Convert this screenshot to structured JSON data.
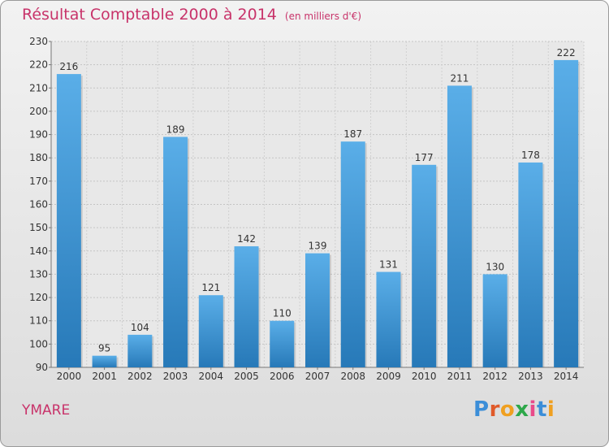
{
  "header": {
    "title": "Résultat Comptable 2000 à 2014",
    "unit": "(en milliers d'€)"
  },
  "commune": "YMARE",
  "logo": {
    "text": "Proxiti",
    "letter_colors": [
      "#3b8ed8",
      "#e05a2a",
      "#f0a020",
      "#2da84a",
      "#e94b8a",
      "#3b8ed8",
      "#f0a020"
    ]
  },
  "colors": {
    "bar_light": "#5aaee8",
    "bar_dark": "#2779b8",
    "accent": "#c8336a"
  },
  "chart_data": {
    "type": "bar",
    "title": "Résultat Comptable 2000 à 2014",
    "subtitle": "(en milliers d'€)",
    "categories": [
      "2000",
      "2001",
      "2002",
      "2003",
      "2004",
      "2005",
      "2006",
      "2007",
      "2008",
      "2009",
      "2010",
      "2011",
      "2012",
      "2013",
      "2014"
    ],
    "values": [
      216,
      95,
      104,
      189,
      121,
      142,
      110,
      139,
      187,
      131,
      177,
      211,
      130,
      178,
      222
    ],
    "ylim": [
      90,
      230
    ],
    "yticks": [
      90,
      100,
      110,
      120,
      130,
      140,
      150,
      160,
      170,
      180,
      190,
      200,
      210,
      220,
      230
    ],
    "grid": true,
    "xlabel": "",
    "ylabel": ""
  }
}
